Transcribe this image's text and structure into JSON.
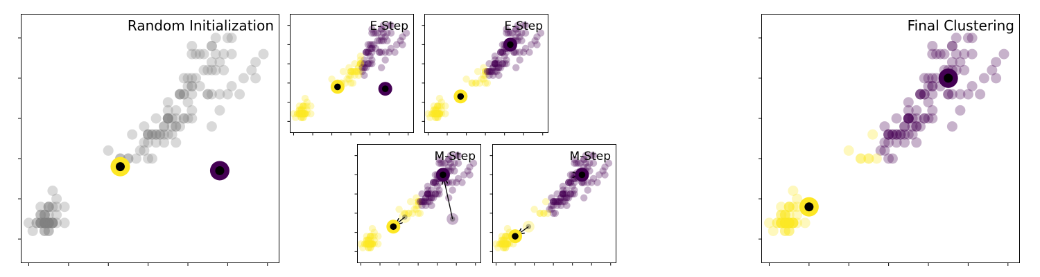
{
  "colors": {
    "unassigned": "#808080",
    "cluster_a": "#fde725",
    "cluster_b": "#440154",
    "centroid_core": "#000000",
    "frame": "#000000"
  },
  "chart_data": [
    {
      "id": "random_init",
      "type": "scatter",
      "title": "Random Initialization",
      "xlim": [
        0.8,
        7.3
      ],
      "ylim": [
        -0.3,
        2.8
      ],
      "grid": false,
      "point_color_mode": "unassigned",
      "point_alpha": 0.3,
      "centroids": [
        {
          "x": 3.3,
          "y": 0.9,
          "color": "cluster_a"
        },
        {
          "x": 5.8,
          "y": 0.85,
          "color": "cluster_b"
        }
      ]
    },
    {
      "id": "estep_1",
      "type": "scatter",
      "title": "E-Step",
      "xlim": [
        0.8,
        7.3
      ],
      "ylim": [
        -0.3,
        2.8
      ],
      "grid": false,
      "point_color_mode": "nearest",
      "point_alpha": 0.3,
      "centroids": [
        {
          "x": 3.3,
          "y": 0.9,
          "color": "cluster_a"
        },
        {
          "x": 5.8,
          "y": 0.85,
          "color": "cluster_b"
        }
      ]
    },
    {
      "id": "estep_2",
      "type": "scatter",
      "title": "E-Step",
      "xlim": [
        0.8,
        7.3
      ],
      "ylim": [
        -0.3,
        2.8
      ],
      "grid": false,
      "point_color_mode": "nearest",
      "point_alpha": 0.3,
      "centroids": [
        {
          "x": 2.7,
          "y": 0.65,
          "color": "cluster_a"
        },
        {
          "x": 5.3,
          "y": 2.0,
          "color": "cluster_b"
        }
      ]
    },
    {
      "id": "mstep_1",
      "type": "scatter",
      "title": "M-Step",
      "xlim": [
        0.8,
        7.3
      ],
      "ylim": [
        -0.3,
        2.8
      ],
      "grid": false,
      "point_color_mode": "nearest",
      "point_alpha": 0.3,
      "centroids": [
        {
          "x": 2.7,
          "y": 0.65,
          "color": "cluster_a",
          "from": {
            "x": 3.3,
            "y": 0.9
          }
        },
        {
          "x": 5.3,
          "y": 2.0,
          "color": "cluster_b",
          "from": {
            "x": 5.8,
            "y": 0.85
          }
        }
      ]
    },
    {
      "id": "mstep_2",
      "type": "scatter",
      "title": "M-Step",
      "xlim": [
        0.8,
        7.3
      ],
      "ylim": [
        -0.3,
        2.8
      ],
      "grid": false,
      "point_color_mode": "nearest",
      "point_alpha": 0.3,
      "centroids": [
        {
          "x": 2.0,
          "y": 0.4,
          "color": "cluster_a",
          "from": {
            "x": 2.7,
            "y": 0.65
          }
        },
        {
          "x": 5.5,
          "y": 2.0,
          "color": "cluster_b",
          "from": {
            "x": 5.3,
            "y": 2.0
          }
        }
      ]
    },
    {
      "id": "final",
      "type": "scatter",
      "title": "Final Clustering",
      "xlim": [
        0.8,
        7.3
      ],
      "ylim": [
        -0.3,
        2.8
      ],
      "grid": false,
      "point_color_mode": "nearest",
      "point_alpha": 0.3,
      "centroids": [
        {
          "x": 2.0,
          "y": 0.4,
          "color": "cluster_a"
        },
        {
          "x": 5.5,
          "y": 2.0,
          "color": "cluster_b"
        }
      ]
    }
  ],
  "points": [
    [
      1.4,
      0.2
    ],
    [
      1.4,
      0.2
    ],
    [
      1.3,
      0.2
    ],
    [
      1.5,
      0.2
    ],
    [
      1.4,
      0.2
    ],
    [
      1.7,
      0.4
    ],
    [
      1.4,
      0.3
    ],
    [
      1.5,
      0.2
    ],
    [
      1.4,
      0.2
    ],
    [
      1.5,
      0.1
    ],
    [
      1.5,
      0.2
    ],
    [
      1.6,
      0.2
    ],
    [
      1.4,
      0.1
    ],
    [
      1.1,
      0.1
    ],
    [
      1.2,
      0.2
    ],
    [
      1.5,
      0.4
    ],
    [
      1.3,
      0.4
    ],
    [
      1.4,
      0.3
    ],
    [
      1.7,
      0.3
    ],
    [
      1.5,
      0.3
    ],
    [
      1.7,
      0.2
    ],
    [
      1.5,
      0.4
    ],
    [
      1.0,
      0.2
    ],
    [
      1.7,
      0.5
    ],
    [
      1.9,
      0.2
    ],
    [
      1.6,
      0.2
    ],
    [
      1.6,
      0.4
    ],
    [
      1.5,
      0.2
    ],
    [
      1.4,
      0.2
    ],
    [
      1.6,
      0.2
    ],
    [
      1.6,
      0.2
    ],
    [
      1.5,
      0.4
    ],
    [
      1.5,
      0.1
    ],
    [
      1.4,
      0.2
    ],
    [
      1.5,
      0.2
    ],
    [
      1.2,
      0.2
    ],
    [
      1.3,
      0.2
    ],
    [
      1.4,
      0.1
    ],
    [
      1.3,
      0.2
    ],
    [
      1.5,
      0.2
    ],
    [
      1.3,
      0.3
    ],
    [
      1.3,
      0.3
    ],
    [
      1.3,
      0.2
    ],
    [
      1.6,
      0.6
    ],
    [
      1.9,
      0.4
    ],
    [
      1.4,
      0.3
    ],
    [
      1.6,
      0.2
    ],
    [
      1.4,
      0.2
    ],
    [
      1.5,
      0.2
    ],
    [
      1.4,
      0.2
    ],
    [
      4.7,
      1.4
    ],
    [
      4.5,
      1.5
    ],
    [
      4.9,
      1.5
    ],
    [
      4.0,
      1.3
    ],
    [
      4.6,
      1.5
    ],
    [
      4.5,
      1.3
    ],
    [
      4.7,
      1.6
    ],
    [
      3.3,
      1.0
    ],
    [
      4.6,
      1.3
    ],
    [
      3.9,
      1.4
    ],
    [
      3.5,
      1.0
    ],
    [
      4.2,
      1.5
    ],
    [
      4.0,
      1.0
    ],
    [
      4.7,
      1.4
    ],
    [
      3.6,
      1.3
    ],
    [
      4.4,
      1.4
    ],
    [
      4.5,
      1.5
    ],
    [
      4.1,
      1.0
    ],
    [
      4.5,
      1.5
    ],
    [
      3.9,
      1.1
    ],
    [
      4.8,
      1.8
    ],
    [
      4.0,
      1.3
    ],
    [
      4.9,
      1.5
    ],
    [
      4.7,
      1.2
    ],
    [
      4.3,
      1.3
    ],
    [
      4.4,
      1.4
    ],
    [
      4.8,
      1.4
    ],
    [
      5.0,
      1.7
    ],
    [
      4.5,
      1.5
    ],
    [
      3.5,
      1.0
    ],
    [
      3.8,
      1.1
    ],
    [
      3.7,
      1.0
    ],
    [
      3.9,
      1.2
    ],
    [
      5.1,
      1.6
    ],
    [
      4.5,
      1.5
    ],
    [
      4.5,
      1.6
    ],
    [
      4.7,
      1.5
    ],
    [
      4.4,
      1.3
    ],
    [
      4.1,
      1.3
    ],
    [
      4.0,
      1.3
    ],
    [
      4.4,
      1.2
    ],
    [
      4.6,
      1.4
    ],
    [
      4.0,
      1.2
    ],
    [
      3.3,
      1.0
    ],
    [
      4.2,
      1.3
    ],
    [
      4.2,
      1.2
    ],
    [
      4.2,
      1.3
    ],
    [
      4.3,
      1.3
    ],
    [
      3.0,
      1.1
    ],
    [
      4.1,
      1.3
    ],
    [
      6.0,
      2.5
    ],
    [
      5.1,
      1.9
    ],
    [
      5.9,
      2.1
    ],
    [
      5.6,
      1.8
    ],
    [
      5.8,
      2.2
    ],
    [
      6.6,
      2.1
    ],
    [
      4.5,
      1.7
    ],
    [
      6.3,
      1.8
    ],
    [
      5.8,
      1.8
    ],
    [
      6.1,
      2.5
    ],
    [
      5.1,
      2.0
    ],
    [
      5.3,
      1.9
    ],
    [
      5.5,
      2.1
    ],
    [
      5.0,
      2.0
    ],
    [
      5.1,
      2.4
    ],
    [
      5.3,
      2.3
    ],
    [
      5.5,
      1.8
    ],
    [
      6.7,
      2.2
    ],
    [
      6.9,
      2.3
    ],
    [
      5.0,
      1.5
    ],
    [
      5.7,
      2.3
    ],
    [
      4.9,
      2.0
    ],
    [
      6.7,
      2.0
    ],
    [
      4.9,
      1.8
    ],
    [
      5.7,
      2.1
    ],
    [
      6.0,
      1.8
    ],
    [
      4.8,
      1.8
    ],
    [
      4.9,
      1.8
    ],
    [
      5.6,
      2.1
    ],
    [
      5.8,
      1.6
    ],
    [
      6.1,
      1.9
    ],
    [
      6.4,
      2.0
    ],
    [
      5.6,
      2.2
    ],
    [
      5.1,
      1.5
    ],
    [
      5.6,
      1.4
    ],
    [
      6.1,
      2.3
    ],
    [
      5.6,
      2.4
    ],
    [
      5.5,
      1.8
    ],
    [
      4.8,
      1.8
    ],
    [
      5.4,
      2.1
    ],
    [
      5.6,
      2.4
    ],
    [
      5.1,
      2.3
    ],
    [
      5.1,
      1.9
    ],
    [
      5.9,
      2.3
    ],
    [
      5.7,
      2.5
    ],
    [
      5.2,
      2.3
    ],
    [
      5.0,
      1.9
    ],
    [
      5.2,
      2.0
    ],
    [
      5.4,
      2.3
    ],
    [
      5.1,
      1.8
    ]
  ]
}
